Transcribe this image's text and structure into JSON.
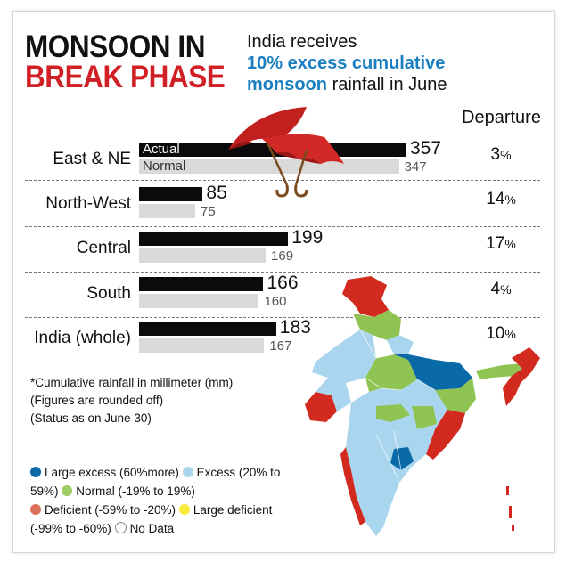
{
  "headline": {
    "line1": "MONSOON IN",
    "line2": "BREAK PHASE"
  },
  "subhead": {
    "pre": "India receives",
    "highlight1": "10% excess cumulative",
    "highlight2": "monsoon",
    "post": "rainfall in June"
  },
  "colors": {
    "headline_red": "#d11f26",
    "highlight_blue": "#1a7fc1",
    "actual_bar": "#0b0b0b",
    "normal_bar": "#d9d9d9"
  },
  "chart_data": {
    "type": "bar",
    "title": "",
    "categories": [
      "East & NE",
      "North-West",
      "Central",
      "South",
      "India (whole)"
    ],
    "series": [
      {
        "name": "Actual",
        "values": [
          357,
          85,
          199,
          166,
          183
        ]
      },
      {
        "name": "Normal",
        "values": [
          347,
          75,
          169,
          160,
          167
        ]
      }
    ],
    "departure_header": "Departure",
    "departure": [
      "3%",
      "14%",
      "17%",
      "4%",
      "10%"
    ],
    "orientation": "horizontal",
    "grid": false
  },
  "notes": [
    "*Cumulative rainfall in millimeter (mm)",
    "(Figures are rounded off)",
    "(Status as on June 30)"
  ],
  "legend": [
    {
      "label": "Large excess (60%more)",
      "color": "#0a6aa8"
    },
    {
      "label": "Excess (20% to 59%)",
      "color": "#a9d5ee"
    },
    {
      "label": "Normal (-19% to 19%)",
      "color": "#9fcc63"
    },
    {
      "label": "Deficient (-59% to -20%)",
      "color": "#d9715a"
    },
    {
      "label": "Large deficient (-99% to -60%)",
      "color": "#f7ec3a"
    },
    {
      "label": "No Data",
      "color": "#ffffff"
    }
  ],
  "map": {
    "icon": "india-rainfall-map-icon"
  }
}
